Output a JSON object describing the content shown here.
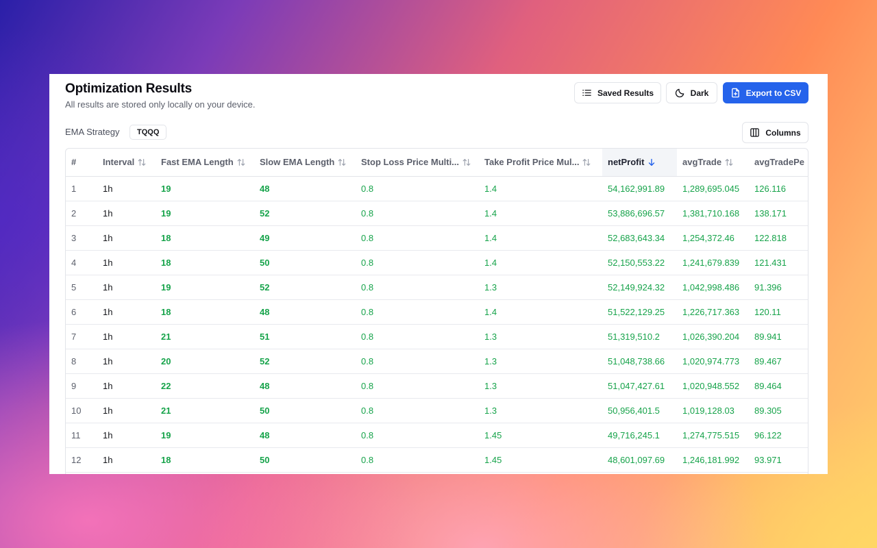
{
  "header": {
    "title": "Optimization Results",
    "subtitle": "All results are stored only locally on your device."
  },
  "toolbar": {
    "saved_results_label": "Saved Results",
    "dark_label": "Dark",
    "export_label": "Export to CSV",
    "columns_label": "Columns"
  },
  "strategy": {
    "name": "EMA Strategy",
    "symbol": "TQQQ"
  },
  "table": {
    "columns": [
      {
        "label": "#",
        "sortable": false
      },
      {
        "label": "Interval",
        "sortable": true
      },
      {
        "label": "Fast EMA Length",
        "sortable": true
      },
      {
        "label": "Slow EMA Length",
        "sortable": true
      },
      {
        "label": "Stop Loss Price Multi...",
        "sortable": true
      },
      {
        "label": "Take Profit Price Mul...",
        "sortable": true
      },
      {
        "label": "netProfit",
        "sortable": true,
        "sorted": "desc"
      },
      {
        "label": "avgTrade",
        "sortable": true
      },
      {
        "label": "avgTradePe",
        "sortable": true
      }
    ],
    "rows": [
      [
        "1",
        "1h",
        "19",
        "48",
        "0.8",
        "1.4",
        "54,162,991.89",
        "1,289,695.045",
        "126.116"
      ],
      [
        "2",
        "1h",
        "19",
        "52",
        "0.8",
        "1.4",
        "53,886,696.57",
        "1,381,710.168",
        "138.171"
      ],
      [
        "3",
        "1h",
        "18",
        "49",
        "0.8",
        "1.4",
        "52,683,643.34",
        "1,254,372.46",
        "122.818"
      ],
      [
        "4",
        "1h",
        "18",
        "50",
        "0.8",
        "1.4",
        "52,150,553.22",
        "1,241,679.839",
        "121.431"
      ],
      [
        "5",
        "1h",
        "19",
        "52",
        "0.8",
        "1.3",
        "52,149,924.32",
        "1,042,998.486",
        "91.396"
      ],
      [
        "6",
        "1h",
        "18",
        "48",
        "0.8",
        "1.4",
        "51,522,129.25",
        "1,226,717.363",
        "120.11"
      ],
      [
        "7",
        "1h",
        "21",
        "51",
        "0.8",
        "1.3",
        "51,319,510.2",
        "1,026,390.204",
        "89.941"
      ],
      [
        "8",
        "1h",
        "20",
        "52",
        "0.8",
        "1.3",
        "51,048,738.66",
        "1,020,974.773",
        "89.467"
      ],
      [
        "9",
        "1h",
        "22",
        "48",
        "0.8",
        "1.3",
        "51,047,427.61",
        "1,020,948.552",
        "89.464"
      ],
      [
        "10",
        "1h",
        "21",
        "50",
        "0.8",
        "1.3",
        "50,956,401.5",
        "1,019,128.03",
        "89.305"
      ],
      [
        "11",
        "1h",
        "19",
        "48",
        "0.8",
        "1.45",
        "49,716,245.1",
        "1,274,775.515",
        "96.122"
      ],
      [
        "12",
        "1h",
        "18",
        "50",
        "0.8",
        "1.45",
        "48,601,097.69",
        "1,246,181.992",
        "93.971"
      ]
    ]
  },
  "colors": {
    "accent": "#2563eb",
    "positive": "#16a34a"
  }
}
